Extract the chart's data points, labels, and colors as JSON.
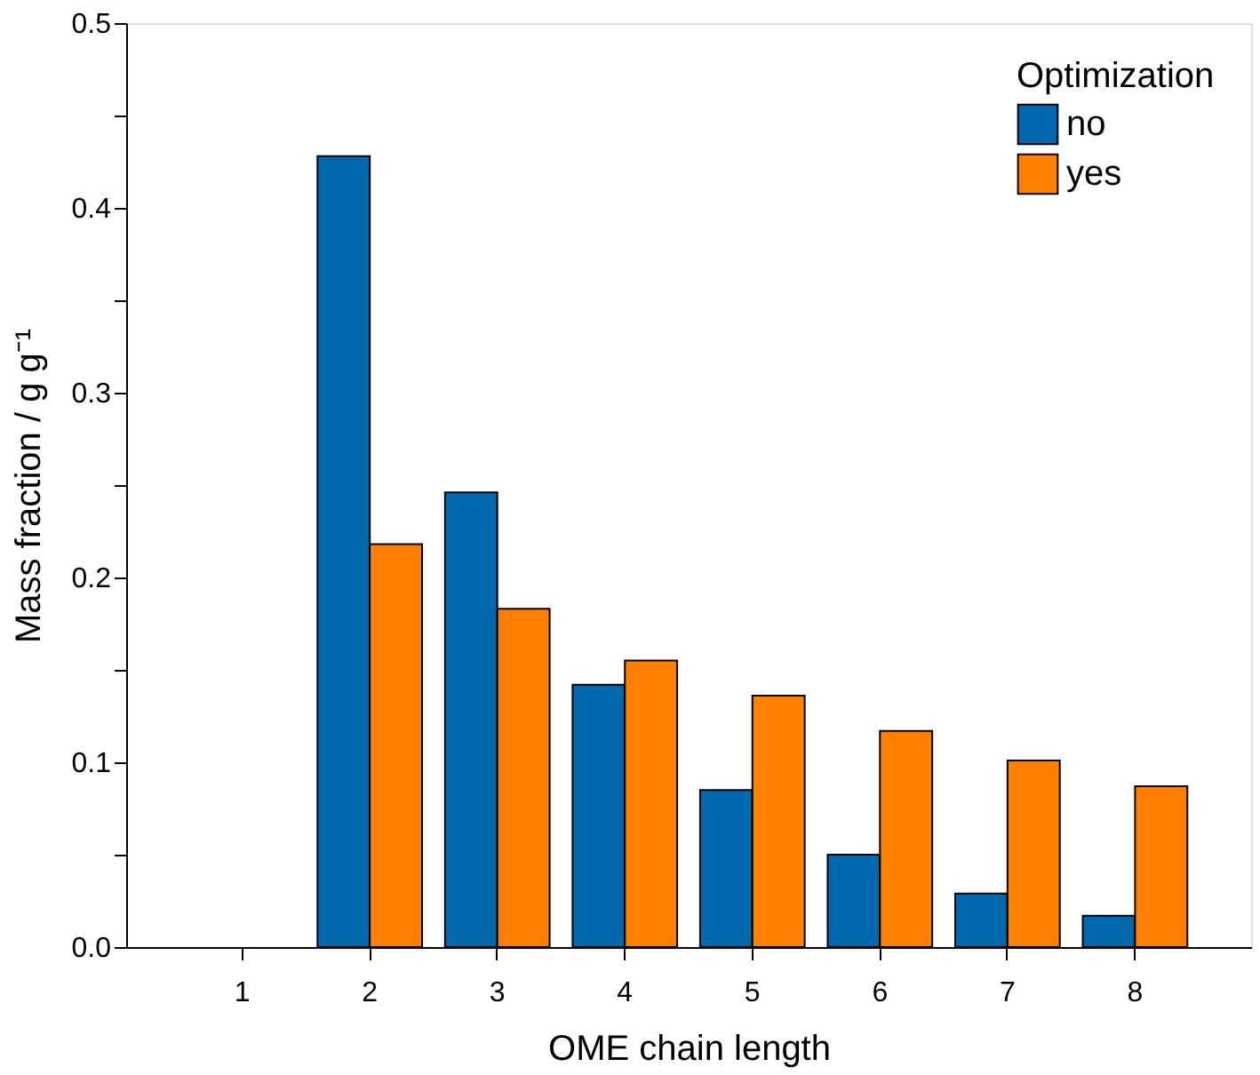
{
  "chart_data": {
    "type": "bar",
    "xlabel": "OME chain length",
    "ylabel": "Mass fraction / g g⁻¹",
    "legend_title": "Optimization",
    "categories": [
      "1",
      "2",
      "3",
      "4",
      "5",
      "6",
      "7",
      "8"
    ],
    "series": [
      {
        "name": "no",
        "color": "#0068ad",
        "values": [
          null,
          0.428,
          0.246,
          0.142,
          0.085,
          0.05,
          0.029,
          0.017
        ]
      },
      {
        "name": "yes",
        "color": "#ff8000",
        "values": [
          null,
          0.218,
          0.183,
          0.155,
          0.136,
          0.117,
          0.101,
          0.087
        ]
      }
    ],
    "ylim": [
      0,
      0.5
    ],
    "yticks": [
      {
        "value": 0,
        "label": "0.0"
      },
      {
        "value": 0.05,
        "label": null
      },
      0.1,
      {
        "value": 0.15,
        "label": null
      },
      0.2,
      {
        "value": 0.25,
        "label": null
      },
      0.3,
      {
        "value": 0.35,
        "label": null
      },
      0.4,
      {
        "value": 0.45,
        "label": null
      },
      0.5
    ],
    "grid": false,
    "legend": "top right"
  }
}
